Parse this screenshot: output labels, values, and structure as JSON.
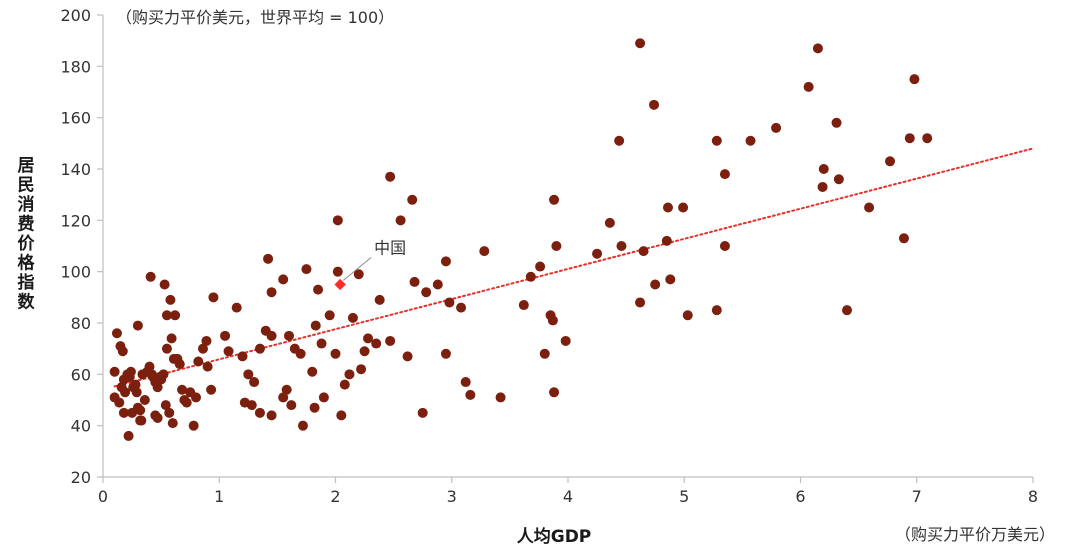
{
  "chart_data": {
    "type": "scatter",
    "xlabel": "人均GDP",
    "x_unit_note": "（购买力平价万美元）",
    "ylabel": "居民消费价格指数",
    "y_unit_note": "（购买力平价美元，世界平均 = 100）",
    "xlim": [
      0,
      8
    ],
    "ylim": [
      20,
      200
    ],
    "x_ticks": [
      "0",
      "1",
      "2",
      "3",
      "4",
      "5",
      "6",
      "7",
      "8"
    ],
    "y_ticks": [
      "20",
      "40",
      "60",
      "80",
      "100",
      "120",
      "140",
      "160",
      "180",
      "200"
    ],
    "grid": false,
    "colors": {
      "points": "#7b1f0e",
      "highlight": "#ff2a2a",
      "trend": "#e8302a",
      "axis": "#bfbfbf"
    },
    "highlight": {
      "label": "中国",
      "x": 2.04,
      "y": 95
    },
    "trendline": {
      "style": "dotted",
      "from": [
        0.1,
        55.3
      ],
      "to": [
        8.0,
        148
      ]
    },
    "points": [
      [
        0.12,
        76
      ],
      [
        0.1,
        61
      ],
      [
        0.15,
        71
      ],
      [
        0.17,
        69
      ],
      [
        0.18,
        58
      ],
      [
        0.16,
        55
      ],
      [
        0.19,
        53
      ],
      [
        0.21,
        60
      ],
      [
        0.23,
        59
      ],
      [
        0.24,
        61
      ],
      [
        0.26,
        55
      ],
      [
        0.28,
        56
      ],
      [
        0.29,
        53
      ],
      [
        0.3,
        47
      ],
      [
        0.32,
        46
      ],
      [
        0.33,
        42
      ],
      [
        0.34,
        60
      ],
      [
        0.36,
        50
      ],
      [
        0.38,
        61
      ],
      [
        0.4,
        63
      ],
      [
        0.42,
        60
      ],
      [
        0.43,
        59
      ],
      [
        0.45,
        57
      ],
      [
        0.47,
        55
      ],
      [
        0.49,
        59
      ],
      [
        0.5,
        58
      ],
      [
        0.52,
        60
      ],
      [
        0.54,
        48
      ],
      [
        0.57,
        45
      ],
      [
        0.41,
        98
      ],
      [
        0.53,
        95
      ],
      [
        0.58,
        89
      ],
      [
        0.55,
        83
      ],
      [
        0.59,
        74
      ],
      [
        0.61,
        66
      ],
      [
        0.64,
        66
      ],
      [
        0.66,
        64
      ],
      [
        0.68,
        54
      ],
      [
        0.7,
        50
      ],
      [
        0.72,
        49
      ],
      [
        0.75,
        53
      ],
      [
        0.8,
        51
      ],
      [
        0.82,
        65
      ],
      [
        0.86,
        70
      ],
      [
        0.89,
        73
      ],
      [
        0.93,
        54
      ],
      [
        0.95,
        90
      ],
      [
        0.78,
        40
      ],
      [
        0.6,
        41
      ],
      [
        0.45,
        44
      ],
      [
        0.22,
        36
      ],
      [
        0.1,
        51
      ],
      [
        0.14,
        49
      ],
      [
        0.18,
        45
      ],
      [
        0.25,
        45
      ],
      [
        0.32,
        42
      ],
      [
        0.47,
        43
      ],
      [
        0.3,
        79
      ],
      [
        0.62,
        83
      ],
      [
        0.55,
        70
      ],
      [
        0.9,
        63
      ],
      [
        1.05,
        75
      ],
      [
        1.08,
        69
      ],
      [
        1.15,
        86
      ],
      [
        1.2,
        67
      ],
      [
        1.25,
        60
      ],
      [
        1.28,
        48
      ],
      [
        1.3,
        57
      ],
      [
        1.35,
        70
      ],
      [
        1.4,
        77
      ],
      [
        1.45,
        75
      ],
      [
        1.42,
        105
      ],
      [
        1.45,
        92
      ],
      [
        1.55,
        97
      ],
      [
        1.6,
        75
      ],
      [
        1.65,
        70
      ],
      [
        1.7,
        68
      ],
      [
        1.75,
        101
      ],
      [
        1.8,
        61
      ],
      [
        1.83,
        79
      ],
      [
        1.85,
        93
      ],
      [
        1.88,
        72
      ],
      [
        1.9,
        51
      ],
      [
        1.22,
        49
      ],
      [
        1.35,
        45
      ],
      [
        1.45,
        44
      ],
      [
        1.55,
        51
      ],
      [
        1.58,
        54
      ],
      [
        1.62,
        48
      ],
      [
        1.72,
        40
      ],
      [
        1.82,
        47
      ],
      [
        1.95,
        83
      ],
      [
        2.0,
        68
      ],
      [
        2.02,
        100
      ],
      [
        2.02,
        120
      ],
      [
        2.05,
        44
      ],
      [
        2.08,
        56
      ],
      [
        2.12,
        60
      ],
      [
        2.15,
        82
      ],
      [
        2.2,
        99
      ],
      [
        2.22,
        62
      ],
      [
        2.25,
        69
      ],
      [
        2.28,
        74
      ],
      [
        2.35,
        72
      ],
      [
        2.38,
        89
      ],
      [
        2.47,
        73
      ],
      [
        2.47,
        137
      ],
      [
        2.56,
        120
      ],
      [
        2.62,
        67
      ],
      [
        2.66,
        128
      ],
      [
        2.68,
        96
      ],
      [
        2.75,
        45
      ],
      [
        2.78,
        92
      ],
      [
        2.88,
        95
      ],
      [
        2.95,
        104
      ],
      [
        2.95,
        68
      ],
      [
        2.98,
        88
      ],
      [
        3.08,
        86
      ],
      [
        3.12,
        57
      ],
      [
        3.16,
        52
      ],
      [
        3.28,
        108
      ],
      [
        3.42,
        51
      ],
      [
        3.62,
        87
      ],
      [
        3.68,
        98
      ],
      [
        3.76,
        102
      ],
      [
        3.8,
        68
      ],
      [
        3.85,
        83
      ],
      [
        3.87,
        81
      ],
      [
        3.88,
        128
      ],
      [
        3.88,
        53
      ],
      [
        3.9,
        110
      ],
      [
        3.98,
        73
      ],
      [
        4.25,
        107
      ],
      [
        4.36,
        119
      ],
      [
        4.44,
        151
      ],
      [
        4.46,
        110
      ],
      [
        4.62,
        189
      ],
      [
        4.62,
        88
      ],
      [
        4.65,
        108
      ],
      [
        4.74,
        165
      ],
      [
        4.75,
        95
      ],
      [
        4.85,
        112
      ],
      [
        4.86,
        125
      ],
      [
        4.88,
        97
      ],
      [
        4.99,
        125
      ],
      [
        5.03,
        83
      ],
      [
        5.28,
        151
      ],
      [
        5.28,
        85
      ],
      [
        5.35,
        138
      ],
      [
        5.35,
        110
      ],
      [
        5.57,
        151
      ],
      [
        5.79,
        156
      ],
      [
        6.07,
        172
      ],
      [
        6.15,
        187
      ],
      [
        6.19,
        133
      ],
      [
        6.2,
        140
      ],
      [
        6.31,
        158
      ],
      [
        6.33,
        136
      ],
      [
        6.4,
        85
      ],
      [
        6.59,
        125
      ],
      [
        6.77,
        143
      ],
      [
        6.89,
        113
      ],
      [
        6.94,
        152
      ],
      [
        6.98,
        175
      ],
      [
        7.09,
        152
      ]
    ]
  }
}
